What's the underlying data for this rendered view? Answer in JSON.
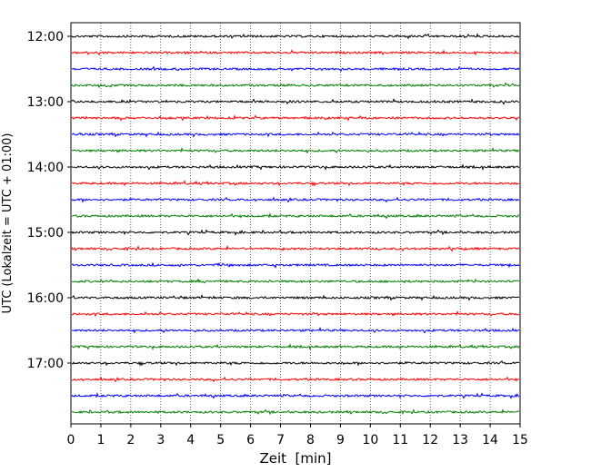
{
  "chart_data": {
    "type": "line",
    "title": "",
    "xlabel": "Zeit  [min]",
    "ylabel": "UTC (Lokalzeit = UTC + 01:00)",
    "xlim": [
      0,
      15
    ],
    "x_ticks": [
      "0",
      "1",
      "2",
      "3",
      "4",
      "5",
      "6",
      "7",
      "8",
      "9",
      "10",
      "11",
      "12",
      "13",
      "14",
      "15"
    ],
    "y_tick_labels": [
      "12:00",
      "13:00",
      "14:00",
      "15:00",
      "16:00",
      "17:00"
    ],
    "grid": "vertical dotted",
    "trace_interval_minutes": 15,
    "trace_colors": [
      "#000000",
      "#ff0000",
      "#0000ff",
      "#008000"
    ],
    "series": [
      {
        "start": "12:00",
        "color": "#000000"
      },
      {
        "start": "12:15",
        "color": "#ff0000"
      },
      {
        "start": "12:30",
        "color": "#0000ff"
      },
      {
        "start": "12:45",
        "color": "#008000"
      },
      {
        "start": "13:00",
        "color": "#000000"
      },
      {
        "start": "13:15",
        "color": "#ff0000"
      },
      {
        "start": "13:30",
        "color": "#0000ff"
      },
      {
        "start": "13:45",
        "color": "#008000"
      },
      {
        "start": "14:00",
        "color": "#000000"
      },
      {
        "start": "14:15",
        "color": "#ff0000"
      },
      {
        "start": "14:30",
        "color": "#0000ff"
      },
      {
        "start": "14:45",
        "color": "#008000"
      },
      {
        "start": "15:00",
        "color": "#000000"
      },
      {
        "start": "15:15",
        "color": "#ff0000"
      },
      {
        "start": "15:30",
        "color": "#0000ff"
      },
      {
        "start": "15:45",
        "color": "#008000"
      },
      {
        "start": "16:00",
        "color": "#000000"
      },
      {
        "start": "16:15",
        "color": "#ff0000"
      },
      {
        "start": "16:30",
        "color": "#0000ff"
      },
      {
        "start": "16:45",
        "color": "#008000"
      },
      {
        "start": "17:00",
        "color": "#000000"
      },
      {
        "start": "17:15",
        "color": "#ff0000"
      },
      {
        "start": "17:30",
        "color": "#0000ff"
      },
      {
        "start": "17:45",
        "color": "#008000"
      }
    ]
  }
}
